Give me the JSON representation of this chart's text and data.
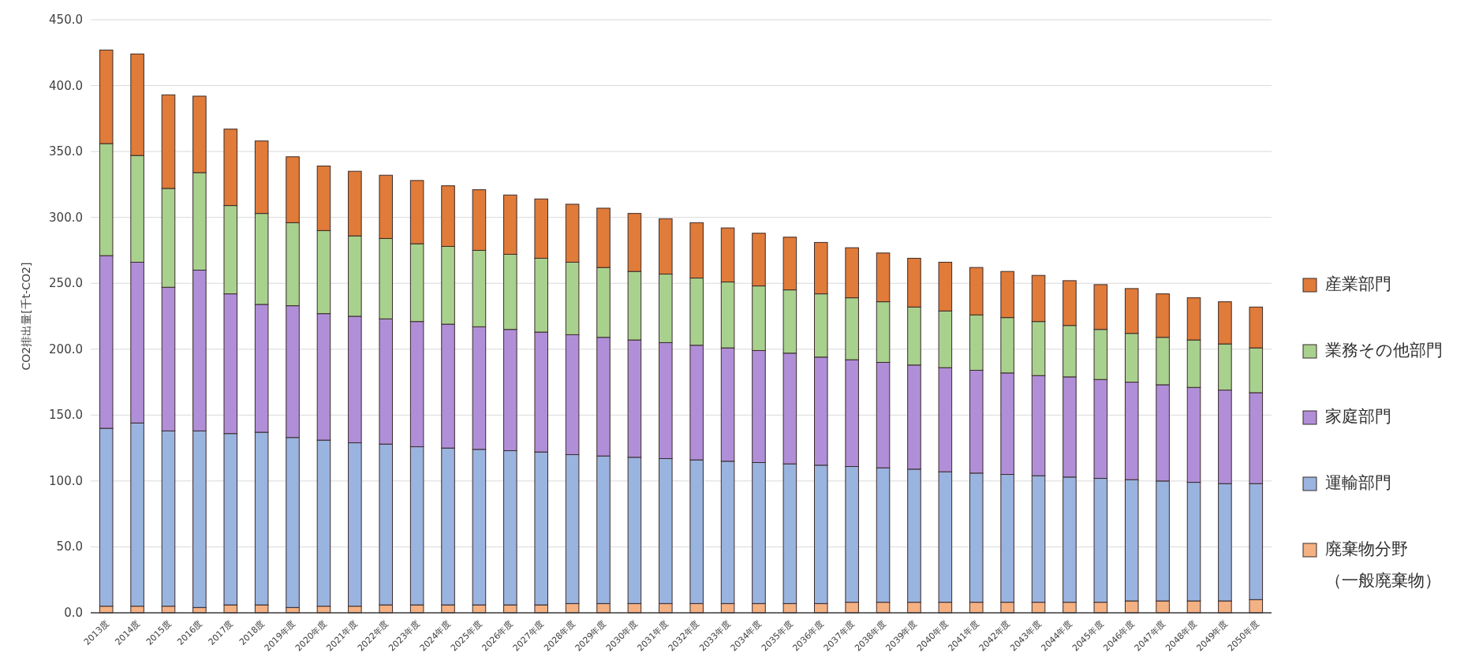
{
  "chart_data": {
    "type": "bar",
    "stacked": true,
    "ylabel": "CO2排出量[千t-CO2]",
    "categories": [
      "2013度",
      "2014度",
      "2015度",
      "2016度",
      "2017度",
      "2018度",
      "2019年度",
      "2020年度",
      "2021年度",
      "2022年度",
      "2023年度",
      "2024年度",
      "2025年度",
      "2026年度",
      "2027年度",
      "2028年度",
      "2029年度",
      "2030年度",
      "2031年度",
      "2032年度",
      "2033年度",
      "2034年度",
      "2035年度",
      "2036年度",
      "2037年度",
      "2038年度",
      "2039年度",
      "2040年度",
      "2041年度",
      "2042年度",
      "2043年度",
      "2044年度",
      "2045年度",
      "2046年度",
      "2047年度",
      "2048年度",
      "2049年度",
      "2050年度"
    ],
    "series": [
      {
        "name": "廃棄物分野（一般廃棄物）",
        "color": "#f4b183",
        "values": [
          5,
          5,
          5,
          4,
          6,
          6,
          4,
          5,
          5,
          6,
          6,
          6,
          6,
          6,
          6,
          7,
          7,
          7,
          7,
          7,
          7,
          7,
          7,
          7,
          8,
          8,
          8,
          8,
          8,
          8,
          8,
          8,
          8,
          9,
          9,
          9,
          9,
          10
        ]
      },
      {
        "name": "運輸部門",
        "color": "#9ab4e0",
        "values": [
          135,
          139,
          133,
          134,
          130,
          131,
          129,
          126,
          124,
          122,
          120,
          119,
          118,
          117,
          116,
          113,
          112,
          111,
          110,
          109,
          108,
          107,
          106,
          105,
          103,
          102,
          101,
          99,
          98,
          97,
          96,
          95,
          94,
          92,
          91,
          90,
          89,
          88
        ]
      },
      {
        "name": "家庭部門",
        "color": "#b08fd8",
        "values": [
          131,
          122,
          109,
          122,
          106,
          97,
          100,
          96,
          96,
          95,
          95,
          94,
          93,
          92,
          91,
          91,
          90,
          89,
          88,
          87,
          86,
          85,
          84,
          82,
          81,
          80,
          79,
          79,
          78,
          77,
          76,
          76,
          75,
          74,
          73,
          72,
          71,
          69
        ]
      },
      {
        "name": "業務その他部門",
        "color": "#a9d18e",
        "values": [
          85,
          81,
          75,
          74,
          67,
          69,
          63,
          63,
          61,
          61,
          59,
          59,
          58,
          57,
          56,
          55,
          53,
          52,
          52,
          51,
          50,
          49,
          48,
          48,
          47,
          46,
          44,
          43,
          42,
          42,
          41,
          39,
          38,
          37,
          36,
          36,
          35,
          34
        ]
      },
      {
        "name": "産業部門",
        "color": "#e07b39",
        "values": [
          71,
          77,
          71,
          58,
          58,
          55,
          50,
          49,
          49,
          48,
          48,
          46,
          46,
          45,
          45,
          44,
          45,
          44,
          42,
          42,
          41,
          40,
          40,
          39,
          38,
          37,
          37,
          37,
          36,
          35,
          35,
          34,
          34,
          34,
          33,
          32,
          32,
          31
        ]
      }
    ],
    "ylim": [
      0,
      450
    ],
    "yticks": [
      {
        "value": 0,
        "label": "0.0"
      },
      {
        "value": 50,
        "label": "50.0"
      },
      {
        "value": 100,
        "label": "100.0"
      },
      {
        "value": 150,
        "label": "150.0"
      },
      {
        "value": 200,
        "label": "200.0"
      },
      {
        "value": 250,
        "label": "250.0"
      },
      {
        "value": 300,
        "label": "300.0"
      },
      {
        "value": 350,
        "label": "350.0"
      },
      {
        "value": 400,
        "label": "400.0"
      },
      {
        "value": 450,
        "label": "450.0"
      }
    ],
    "grid": "y",
    "legend": "right"
  }
}
